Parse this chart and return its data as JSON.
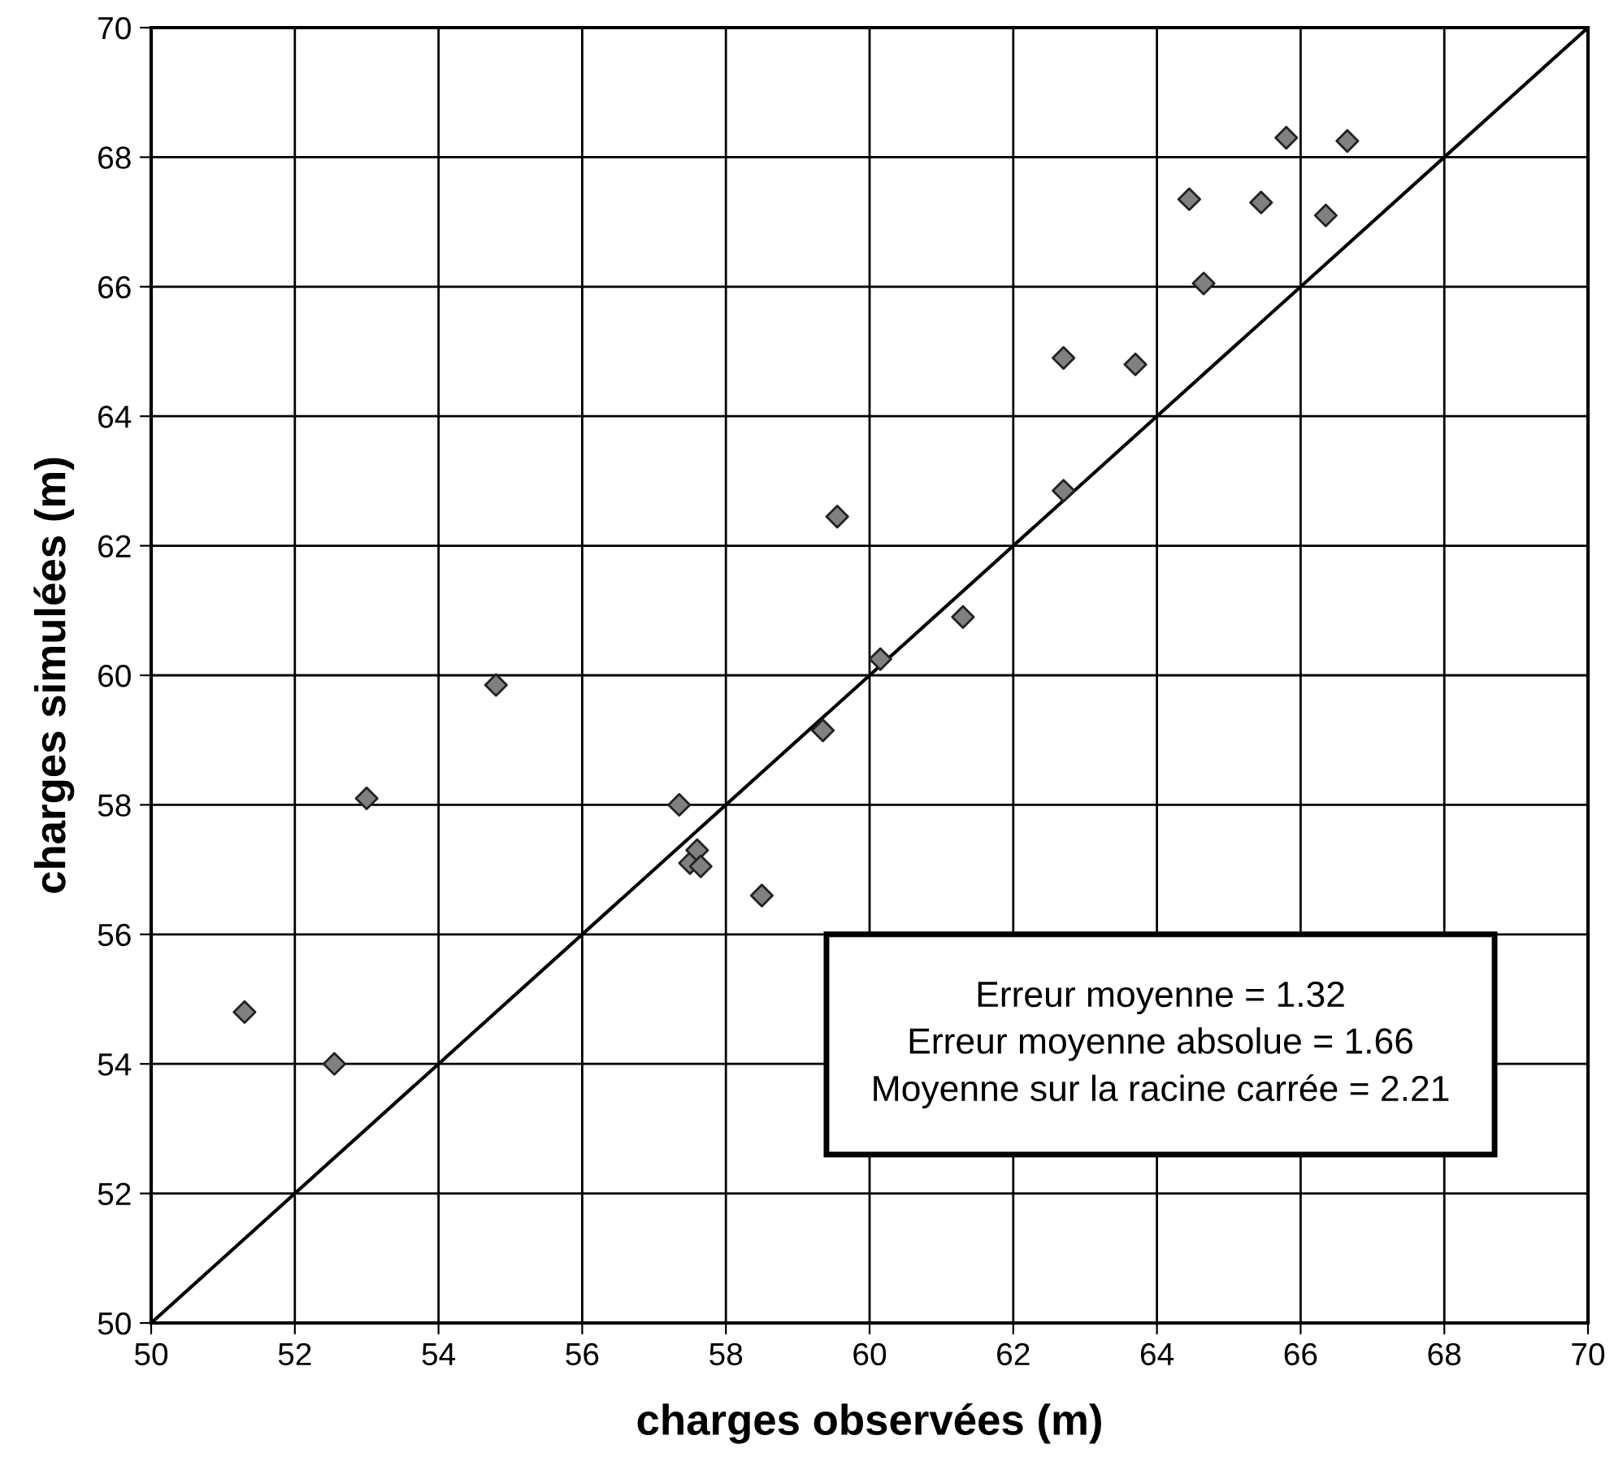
{
  "chart_data": {
    "type": "scatter",
    "xlabel": "charges observées (m)",
    "ylabel": "charges simulées (m)",
    "xlim": [
      50,
      70
    ],
    "ylim": [
      50,
      70
    ],
    "xticks": [
      50,
      52,
      54,
      56,
      58,
      60,
      62,
      64,
      66,
      68,
      70
    ],
    "yticks": [
      50,
      52,
      54,
      56,
      58,
      60,
      62,
      64,
      66,
      68,
      70
    ],
    "grid": true,
    "marker": "diamond",
    "series": [
      {
        "color": "#808080",
        "x": [
          51.3,
          52.55,
          53.0,
          54.8,
          57.35,
          57.5,
          57.6,
          57.65,
          58.5,
          59.55,
          60.15,
          59.35,
          61.3,
          62.7,
          62.7,
          63.7,
          64.65,
          64.45,
          65.45,
          66.35,
          65.8,
          66.65
        ],
        "values": [
          54.8,
          54.0,
          58.1,
          59.85,
          58.0,
          57.1,
          57.3,
          57.05,
          56.6,
          62.45,
          60.25,
          59.15,
          60.9,
          62.85,
          64.9,
          64.8,
          66.05,
          67.35,
          67.3,
          67.1,
          68.3,
          68.25
        ]
      },
      {
        "type": "line",
        "color": "#000000",
        "marker": "none",
        "line_style": "solid",
        "x": [
          50,
          70
        ],
        "values": [
          50,
          70
        ]
      }
    ],
    "annotations": [
      "Erreur moyenne = 1.32",
      "Erreur moyenne absolue = 1.66",
      "Moyenne sur la racine carrée = 2.21"
    ]
  }
}
